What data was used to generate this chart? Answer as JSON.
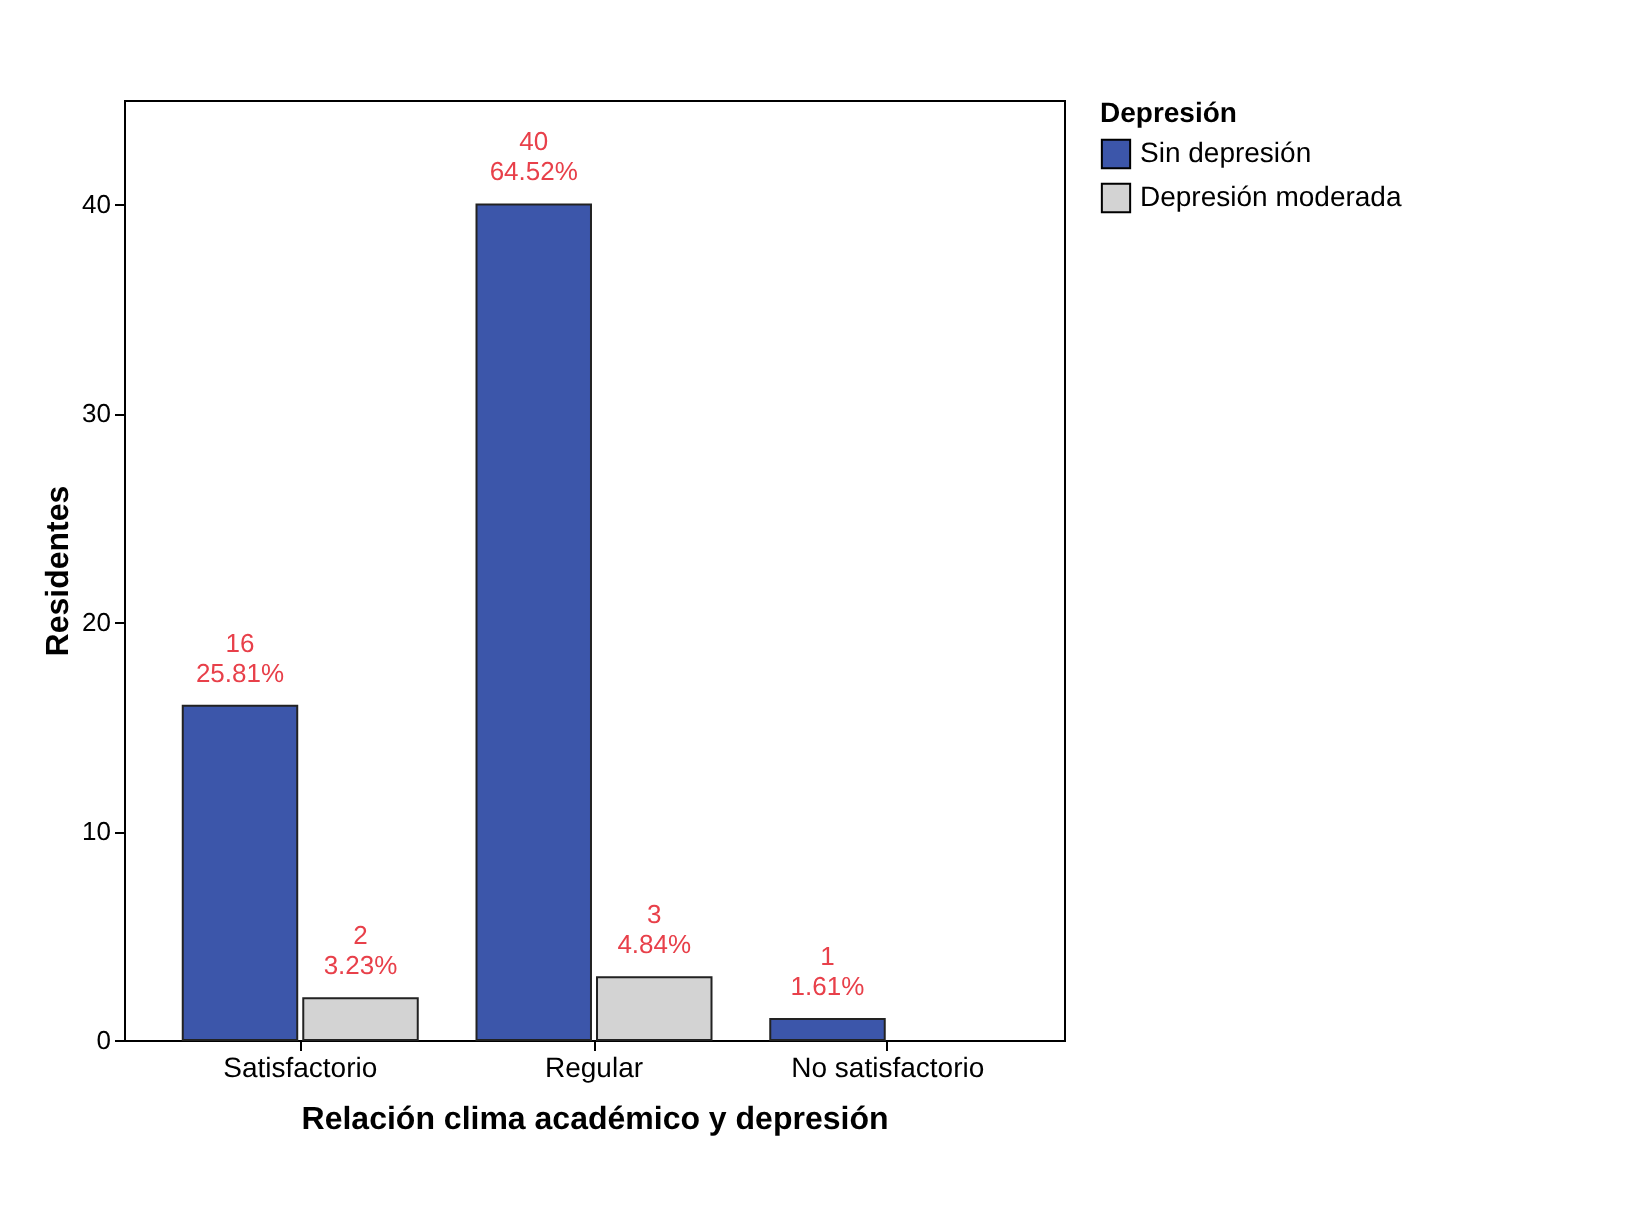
{
  "chart_data": {
    "type": "bar",
    "xlabel": "Relación clima académico y depresión",
    "ylabel": "Residentes",
    "legend_title": "Depresión",
    "legend": "top right",
    "categories": [
      "Satisfactorio",
      "Regular",
      "No satisfactorio"
    ],
    "ylim": [
      0,
      45
    ],
    "yticks": [
      0,
      10,
      20,
      30,
      40
    ],
    "grid": false,
    "series": [
      {
        "name": "Sin depresión",
        "color": "#3c56aa",
        "values": [
          16,
          40,
          1
        ],
        "value_labels": [
          "16\n25.81%",
          "40\n64.52%",
          "1\n1.61%"
        ]
      },
      {
        "name": "Depresión moderada",
        "color": "#d3d3d3",
        "values": [
          2,
          3,
          null
        ],
        "value_labels": [
          "2\n3.23%",
          "3\n4.84%",
          null
        ]
      }
    ]
  }
}
